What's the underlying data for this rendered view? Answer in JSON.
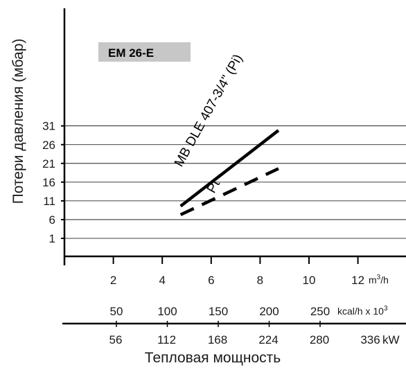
{
  "chart_data": {
    "type": "line",
    "title": "EM 26-E",
    "ylabel": "Потери давления (мбар)",
    "xlabel": "Тепловая мощность",
    "ylim": [
      -3,
      31
    ],
    "y_ticks": [
      1,
      6,
      11,
      16,
      21,
      26,
      31
    ],
    "y_grid": true,
    "x_axes": [
      {
        "unit": "m³/h",
        "unit_base": "m",
        "unit_sup": "3",
        "unit_tail": "/h",
        "ticks": [
          2,
          4,
          6,
          8,
          10,
          12
        ]
      },
      {
        "unit": "kcal/h x 10³",
        "unit_base": "kcal/h x 10",
        "unit_sup": "3",
        "ticks": [
          50,
          100,
          150,
          200,
          250
        ]
      },
      {
        "unit": "kW",
        "ticks": [
          56,
          112,
          168,
          224,
          280,
          336
        ]
      }
    ],
    "xlim": [
      0,
      13.5
    ],
    "series": [
      {
        "name": "MB DLE 407-3/4\" (Pi)",
        "style": "solid",
        "x": [
          4.75,
          8.75
        ],
        "y": [
          9.6,
          29.8
        ]
      },
      {
        "name": "Pt",
        "style": "dashed",
        "x": [
          4.75,
          8.75
        ],
        "y": [
          7.3,
          19.6
        ]
      }
    ]
  }
}
